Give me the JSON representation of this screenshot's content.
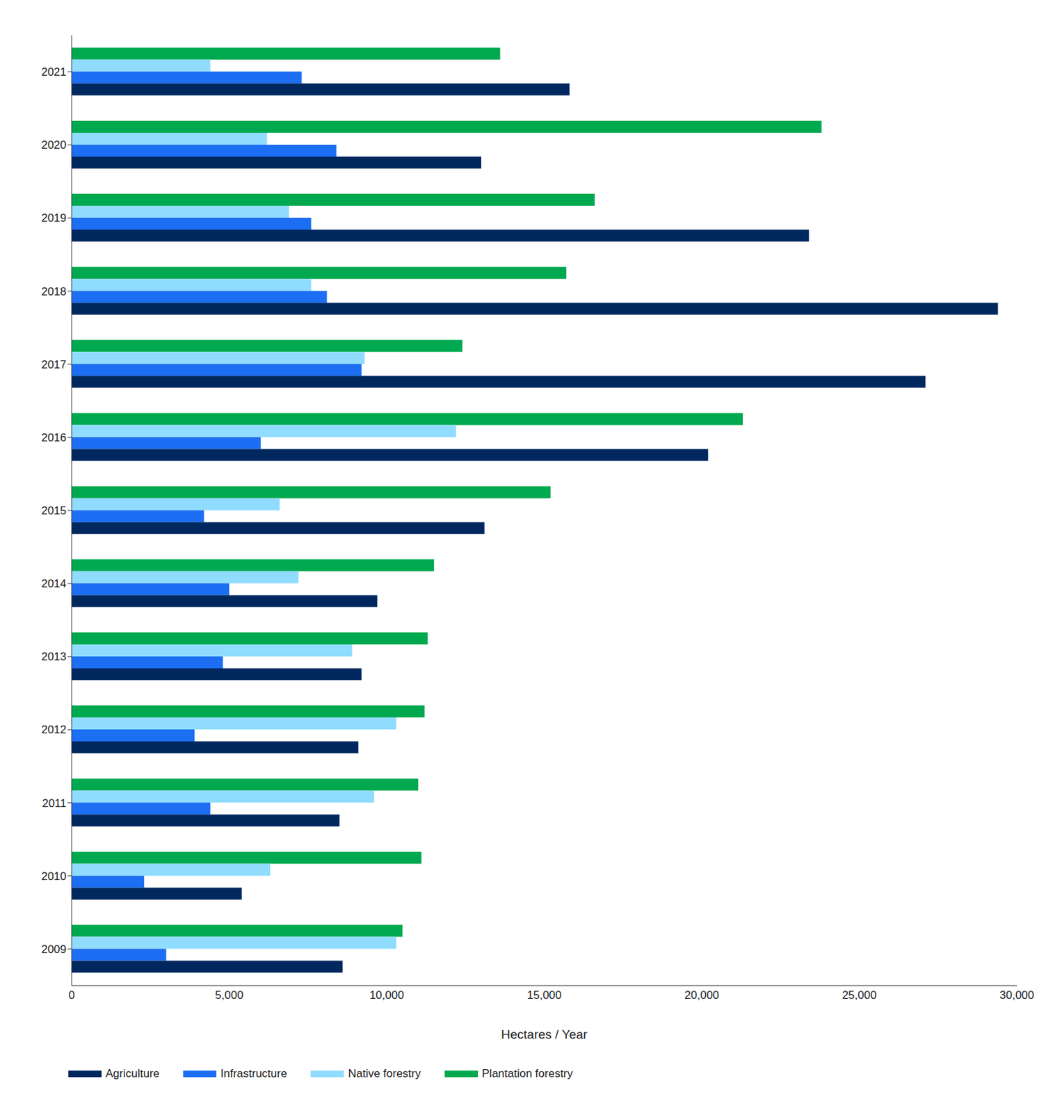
{
  "chart_data": {
    "type": "bar",
    "orientation": "horizontal",
    "x_label": "Hectares / Year",
    "categories": [
      "2021",
      "2020",
      "2019",
      "2018",
      "2017",
      "2016",
      "2015",
      "2014",
      "2013",
      "2012",
      "2011",
      "2010",
      "2009"
    ],
    "series": [
      {
        "name": "Agriculture",
        "color": "#00285f",
        "values": [
          15800,
          13000,
          23400,
          29400,
          27100,
          20200,
          13100,
          9700,
          9200,
          9100,
          8500,
          5400,
          8600
        ]
      },
      {
        "name": "Infrastructure",
        "color": "#1c6ef2",
        "values": [
          7300,
          8400,
          7600,
          8100,
          9200,
          6000,
          4200,
          5000,
          4800,
          3900,
          4400,
          2300,
          3000
        ]
      },
      {
        "name": "Native forestry",
        "color": "#8fdcff",
        "values": [
          4400,
          6200,
          6900,
          7600,
          9300,
          12200,
          6600,
          7200,
          8900,
          10300,
          9600,
          6300,
          10300
        ]
      },
      {
        "name": "Plantation forestry",
        "color": "#00a94f",
        "values": [
          13600,
          23800,
          16600,
          15700,
          12400,
          21300,
          15200,
          11500,
          11300,
          11200,
          11000,
          11100,
          10500
        ]
      }
    ],
    "xlim": [
      0,
      30000
    ],
    "xticks": [
      0,
      {
        "value": 5000,
        "label": "5,000"
      },
      {
        "value": 10000,
        "label": "10,000"
      },
      {
        "value": 15000,
        "label": "15,000"
      },
      {
        "value": 20000,
        "label": "20,000"
      },
      {
        "value": 25000,
        "label": "25,000"
      },
      {
        "value": 30000,
        "label": "30,000"
      }
    ],
    "grid": false,
    "legend": "bottom-left"
  }
}
